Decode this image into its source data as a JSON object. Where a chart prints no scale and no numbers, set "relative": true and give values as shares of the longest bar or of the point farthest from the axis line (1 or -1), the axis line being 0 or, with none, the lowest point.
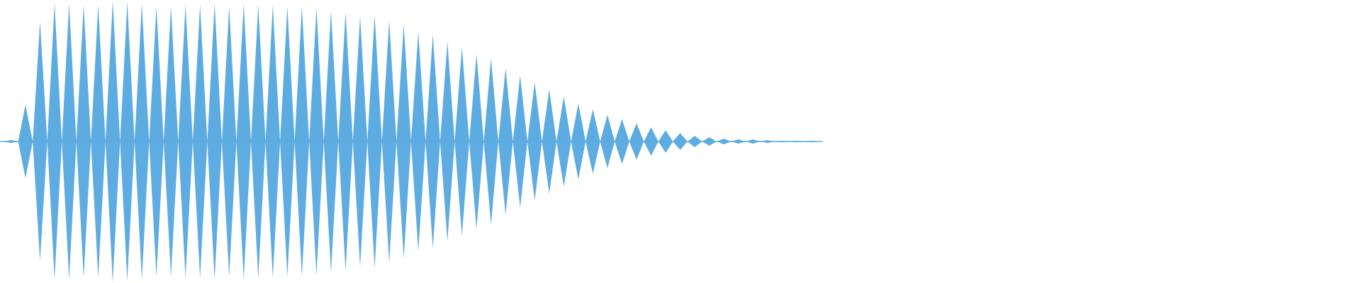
{
  "chart_data": {
    "type": "area",
    "relative": true,
    "categories": [
      null,
      null,
      null,
      null,
      null,
      null,
      null,
      null,
      null,
      null,
      null,
      null,
      null,
      null,
      null,
      null,
      null,
      null,
      null,
      null,
      null,
      null,
      null,
      null,
      null,
      null,
      null,
      null,
      null,
      null,
      null,
      null,
      null,
      null,
      null,
      null,
      null,
      null,
      null,
      null,
      null,
      null,
      null,
      null,
      null,
      null,
      null,
      null,
      null,
      null,
      null,
      null,
      null,
      null,
      null,
      null,
      null,
      null,
      null,
      null,
      null,
      null,
      null,
      null,
      null,
      null,
      null,
      null,
      null,
      null,
      null,
      null,
      null,
      null,
      null,
      null,
      null,
      null,
      null,
      null,
      null,
      null,
      null,
      null,
      null,
      null,
      null,
      null,
      null,
      null,
      null,
      null,
      null,
      null,
      null,
      null,
      null,
      null,
      null,
      null,
      null,
      null,
      null,
      null,
      null,
      null,
      null,
      null,
      null,
      null,
      null,
      null,
      null
    ],
    "series": [
      {
        "color": "#5dace1",
        "values": [
          0,
          0.01,
          0,
          0.26,
          0,
          0.85,
          0,
          0.98,
          0,
          0.98,
          0,
          0.97,
          0,
          0.97,
          0,
          1.0,
          0,
          0.99,
          0,
          0.98,
          0,
          0.96,
          0,
          0.96,
          0,
          0.97,
          0,
          0.97,
          0,
          0.98,
          0,
          0.96,
          0,
          0.98,
          0,
          0.97,
          0,
          0.97,
          0,
          0.96,
          0,
          0.96,
          0,
          0.95,
          0,
          0.93,
          0,
          0.92,
          0,
          0.89,
          0,
          0.9,
          0,
          0.86,
          0,
          0.83,
          0,
          0.78,
          0,
          0.76,
          0,
          0.71,
          0,
          0.67,
          0,
          0.62,
          0,
          0.59,
          0,
          0.52,
          0,
          0.47,
          0,
          0.42,
          0,
          0.37,
          0,
          0.32,
          0,
          0.27,
          0,
          0.23,
          0,
          0.19,
          0,
          0.16,
          0,
          0.13,
          0,
          0.1,
          0,
          0.08,
          0,
          0.06,
          0,
          0.04,
          0,
          0.03,
          0,
          0.02,
          0,
          0.015,
          0,
          0.015,
          0,
          0.01,
          0,
          0.005,
          0,
          0.005,
          0,
          0.005,
          0
        ]
      },
      {
        "color": "#5eace1",
        "values": [
          0,
          -0.01,
          0,
          -0.26,
          0,
          -0.85,
          0,
          -0.98,
          0,
          -0.98,
          0,
          -0.97,
          0,
          -0.97,
          0,
          -1.0,
          0,
          -0.99,
          0,
          -0.98,
          0,
          -0.96,
          0,
          -0.96,
          0,
          -0.97,
          0,
          -0.97,
          0,
          -0.98,
          0,
          -0.96,
          0,
          -0.98,
          0,
          -0.97,
          0,
          -0.97,
          0,
          -0.96,
          0,
          -0.96,
          0,
          -0.95,
          0,
          -0.93,
          0,
          -0.92,
          0,
          -0.89,
          0,
          -0.9,
          0,
          -0.86,
          0,
          -0.83,
          0,
          -0.78,
          0,
          -0.76,
          0,
          -0.71,
          0,
          -0.67,
          0,
          -0.62,
          0,
          -0.59,
          0,
          -0.52,
          0,
          -0.47,
          0,
          -0.42,
          0,
          -0.37,
          0,
          -0.32,
          0,
          -0.27,
          0,
          -0.23,
          0,
          -0.19,
          0,
          -0.16,
          0,
          -0.13,
          0,
          -0.1,
          0,
          -0.08,
          0,
          -0.06,
          0,
          -0.04,
          0,
          -0.03,
          0,
          -0.02,
          0,
          -0.015,
          0,
          -0.015,
          0,
          -0.01,
          0,
          -0.005,
          0,
          -0.005,
          0,
          -0.005,
          0
        ]
      }
    ]
  }
}
